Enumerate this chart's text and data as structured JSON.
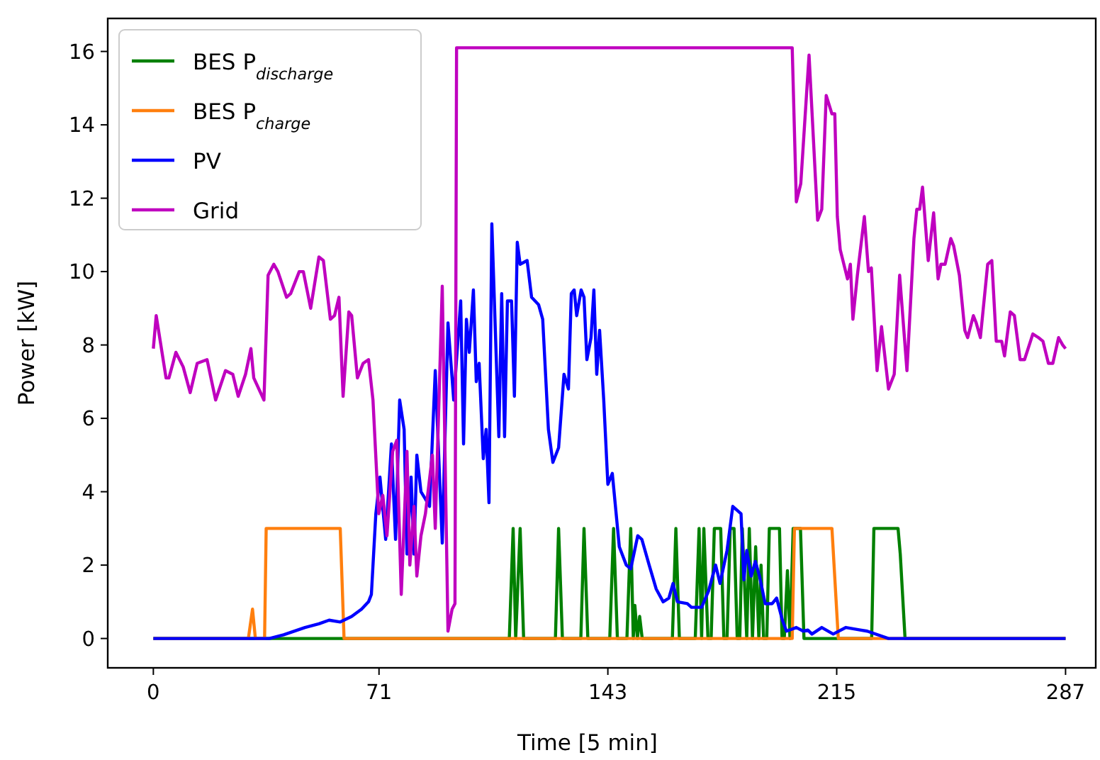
{
  "chart_data": {
    "type": "line",
    "xlabel": "Time [5 min]",
    "ylabel": "Power [kW]",
    "xlim": [
      -14.35,
      296.5
    ],
    "ylim": [
      -0.8,
      16.9
    ],
    "xticks": [
      0,
      71,
      143,
      215,
      287
    ],
    "yticks": [
      0,
      2,
      4,
      6,
      8,
      10,
      12,
      14,
      16
    ],
    "grid": false,
    "legend": "top left",
    "marker": "none",
    "line_style": "solid",
    "series": [
      {
        "name": "BES P$_{discharge}$",
        "color": "#008000",
        "x": [
          0,
          112,
          113.2,
          114,
          115.4,
          116.5,
          126.5,
          127.5,
          128.7,
          134.5,
          135.5,
          136.7,
          143.6,
          144.8,
          146,
          149,
          150.2,
          151,
          151.5,
          152.3,
          153,
          153.8,
          163.3,
          164.4,
          165.5,
          170.5,
          171.7,
          172.5,
          173.2,
          174.5,
          175.5,
          176.5,
          178.5,
          179.5,
          180.5,
          181.5,
          182.7,
          183.7,
          184.5,
          185.3,
          186.7,
          187.5,
          188.5,
          189.5,
          190.5,
          191.2,
          192,
          193,
          193.8,
          197,
          197.8,
          198.5,
          199.5,
          200.3,
          201.3,
          203.6,
          204.7,
          226,
          226.7,
          234.3,
          235,
          236.5,
          287
        ],
        "values": [
          0,
          0,
          3,
          0,
          3,
          0,
          0,
          3,
          0,
          0,
          3,
          0,
          0,
          3,
          0,
          0,
          3,
          0,
          0.9,
          0,
          0.6,
          0,
          0,
          3,
          0,
          0,
          3,
          0,
          3,
          0,
          0,
          3,
          3,
          0,
          0,
          3,
          3,
          0,
          0,
          3,
          0,
          3,
          0,
          2.5,
          0,
          2,
          0,
          0,
          3,
          3,
          0,
          0,
          1.85,
          0,
          3,
          3,
          0,
          0,
          3,
          3,
          2.3,
          0,
          0
        ]
      },
      {
        "name": "BES P$_{charge}$",
        "color": "#ff7f0e",
        "x": [
          0,
          29.9,
          31.2,
          32.1,
          35,
          35.5,
          58.8,
          60,
          201,
          201.7,
          213.5,
          215.5,
          287
        ],
        "values": [
          0,
          0,
          0.8,
          0,
          0,
          3,
          3,
          0,
          0,
          3,
          3,
          0,
          0
        ]
      },
      {
        "name": "PV",
        "color": "#0000ff",
        "x": [
          0,
          36.5,
          41,
          47.7,
          52.1,
          55.3,
          58.8,
          62.4,
          65.5,
          67.7,
          68.6,
          70,
          71.3,
          73.1,
          74.9,
          76.2,
          77.5,
          78.9,
          79.8,
          81.1,
          82,
          82.9,
          84.2,
          85.6,
          86.9,
          88.7,
          90.9,
          92.7,
          94.5,
          96.7,
          97.6,
          98.5,
          99.4,
          100.7,
          101.6,
          102.5,
          103.8,
          104.7,
          105.6,
          106.5,
          108.7,
          109.6,
          110.5,
          111.4,
          112.7,
          113.6,
          114.5,
          115.4,
          117.6,
          119,
          121.2,
          122.5,
          124.3,
          125.7,
          127.5,
          129.2,
          130.6,
          131.5,
          132.4,
          133.2,
          134.6,
          135.5,
          136.4,
          137.7,
          138.6,
          139.5,
          140.4,
          141.7,
          143,
          144.4,
          146.6,
          148.8,
          150.2,
          152.4,
          153.7,
          156,
          158.2,
          160.4,
          162.2,
          163.5,
          164.9,
          168,
          169.3,
          172.5,
          174.7,
          176.9,
          178.3,
          180.5,
          182.3,
          184.9,
          185.8,
          186.7,
          188.1,
          189.4,
          190.7,
          192.5,
          194.7,
          196.1,
          197.9,
          199.2,
          202.3,
          204.5,
          205.9,
          207.2,
          210.3,
          213.9,
          217.9,
          222.4,
          224.6,
          231.3,
          287
        ],
        "values": [
          0,
          0,
          0.1,
          0.3,
          0.4,
          0.5,
          0.45,
          0.6,
          0.8,
          1,
          1.2,
          3.4,
          4.4,
          2.7,
          5.3,
          2.7,
          6.5,
          5.7,
          2.3,
          4.4,
          2.3,
          5,
          4,
          3.8,
          3.6,
          7.3,
          2.6,
          8.6,
          6.5,
          9.2,
          5.3,
          8.7,
          7.8,
          9.5,
          7,
          7.5,
          4.9,
          5.7,
          3.7,
          11.3,
          5.5,
          9.4,
          5.5,
          9.2,
          9.2,
          6.6,
          10.8,
          10.2,
          10.3,
          9.3,
          9.1,
          8.7,
          5.7,
          4.8,
          5.2,
          7.2,
          6.8,
          9.4,
          9.5,
          8.8,
          9.5,
          9.3,
          7.6,
          8.2,
          9.5,
          7.2,
          8.4,
          6.5,
          4.2,
          4.5,
          2.5,
          2,
          1.9,
          2.8,
          2.7,
          2,
          1.35,
          1,
          1.1,
          1.5,
          1,
          0.95,
          0.85,
          0.85,
          1.3,
          2,
          1.5,
          2.4,
          3.6,
          3.4,
          1.6,
          2.4,
          1.7,
          2.1,
          1.7,
          0.95,
          0.95,
          1.1,
          0.5,
          0.2,
          0.3,
          0.2,
          0.23,
          0.12,
          0.3,
          0.12,
          0.3,
          0.23,
          0.2,
          0,
          0
        ]
      },
      {
        "name": "Grid",
        "color": "#bf00bf",
        "x": [
          0,
          0.9,
          4,
          4.9,
          7.1,
          9.4,
          11.6,
          13.8,
          16.9,
          19.6,
          22.7,
          25,
          26.7,
          29,
          30.7,
          31.6,
          34.8,
          36.1,
          37.9,
          39.2,
          41.9,
          43.2,
          45.9,
          47.2,
          49.5,
          52.1,
          53.5,
          55.7,
          57,
          58.4,
          59.7,
          61.5,
          62.4,
          64.2,
          66,
          67.7,
          69.1,
          70.9,
          72.2,
          73.5,
          75.3,
          76.6,
          78,
          79.8,
          80.7,
          82,
          82.9,
          84.2,
          85.6,
          87.8,
          88.7,
          90.9,
          92.7,
          94,
          94.9,
          95.4,
          201,
          202.3,
          203.7,
          206.3,
          209,
          210.3,
          211.7,
          213.5,
          214.4,
          215.2,
          216.1,
          218.4,
          219.3,
          220.1,
          221.5,
          223.7,
          225,
          225.9,
          227.7,
          229.1,
          231.3,
          233.1,
          234.8,
          237.1,
          239.3,
          240.2,
          241.1,
          242,
          243.8,
          245.5,
          246.9,
          247.8,
          249.1,
          250.9,
          251.8,
          253.6,
          255.3,
          256.2,
          258,
          258.9,
          260.2,
          262.5,
          263.8,
          265.2,
          266.9,
          267.8,
          269.6,
          270.9,
          272.7,
          274.1,
          276.7,
          278.5,
          279.9,
          281.6,
          283,
          284.8,
          286.1,
          287
        ],
        "values": [
          7.9,
          8.8,
          7.1,
          7.1,
          7.8,
          7.4,
          6.7,
          7.5,
          7.6,
          6.5,
          7.3,
          7.2,
          6.6,
          7.2,
          7.9,
          7.1,
          6.5,
          9.9,
          10.2,
          10,
          9.3,
          9.4,
          10,
          10,
          9,
          10.4,
          10.3,
          8.7,
          8.8,
          9.3,
          6.6,
          8.9,
          8.8,
          7.1,
          7.5,
          7.6,
          6.5,
          3.4,
          3.9,
          2.8,
          5.1,
          5.4,
          1.2,
          5.1,
          2,
          3.6,
          1.7,
          2.8,
          3.4,
          5,
          3,
          9.6,
          0.2,
          0.8,
          0.95,
          16.1,
          16.1,
          11.9,
          12.4,
          15.9,
          11.4,
          11.7,
          14.8,
          14.3,
          14.3,
          11.5,
          10.6,
          9.8,
          10.2,
          8.7,
          9.9,
          11.5,
          10,
          10.1,
          7.3,
          8.5,
          6.8,
          7.2,
          9.9,
          7.3,
          10.9,
          11.7,
          11.7,
          12.3,
          10.3,
          11.6,
          9.8,
          10.2,
          10.2,
          10.9,
          10.7,
          9.9,
          8.4,
          8.2,
          8.8,
          8.6,
          8.2,
          10.2,
          10.3,
          8.1,
          8.1,
          7.7,
          8.9,
          8.8,
          7.6,
          7.6,
          8.3,
          8.2,
          8.1,
          7.5,
          7.5,
          8.2,
          8,
          7.9
        ]
      }
    ]
  }
}
